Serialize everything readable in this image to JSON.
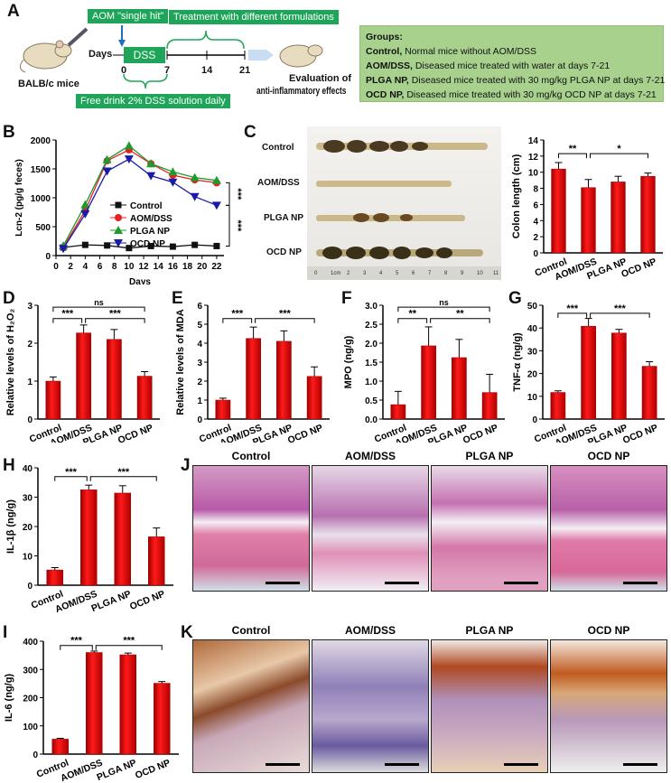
{
  "panel_labels": {
    "A": "A",
    "B": "B",
    "C": "C",
    "D": "D",
    "E": "E",
    "F": "F",
    "G": "G",
    "H": "H",
    "I": "I",
    "J": "J",
    "K": "K"
  },
  "colors": {
    "bar": "#e00000",
    "green_box": "#1fa55a",
    "groups_bg": "#a9d18e",
    "control": "#111111",
    "aom": "#e82020",
    "plga": "#1e9a2e",
    "ocd": "#1a1aa8"
  },
  "schematic": {
    "mouse_label": "BALB/c mice",
    "aom_box": "AOM \"single hit\"",
    "treatment_box": "Treatment with different formulations",
    "days_label": "Days",
    "dss_box": "DSS",
    "day_ticks": [
      "0",
      "7",
      "14",
      "21"
    ],
    "dss_box_bottom": "Free drink 2% DSS solution daily",
    "evaluation": [
      "Evaluation of",
      "anti-inflammatory effects"
    ]
  },
  "groups": {
    "title": "Groups:",
    "items": [
      {
        "name": "Control,",
        "desc": " Normal mice without AOM/DSS"
      },
      {
        "name": "AOM/DSS,",
        "desc": " Diseased mice treated with water at days 7-21"
      },
      {
        "name": "PLGA NP,",
        "desc": " Diseased mice treated with 30 mg/kg PLGA NP at days 7-21"
      },
      {
        "name": "OCD NP,",
        "desc": " Diseased mice treated with 30 mg/kg OCD NP at days 7-21"
      }
    ]
  },
  "colon_photo": {
    "rows": [
      "Control",
      "AOM/DSS",
      "PLGA NP",
      "OCD NP"
    ],
    "ruler": [
      "0",
      "1cm",
      "2",
      "3",
      "4",
      "5",
      "6",
      "7",
      "8",
      "9",
      "10",
      "11"
    ]
  },
  "histology": {
    "J": [
      "Control",
      "AOM/DSS",
      "PLGA NP",
      "OCD NP"
    ],
    "K": [
      "Control",
      "AOM/DSS",
      "PLGA NP",
      "OCD NP"
    ]
  },
  "chart_data": [
    {
      "id": "B",
      "type": "line",
      "xlabel": "Days",
      "ylabel": "Lcn-2 (pg/g feces)",
      "xlim": [
        0,
        23
      ],
      "ylim": [
        0,
        2000
      ],
      "xticks": [
        "0",
        "2",
        "4",
        "6",
        "8",
        "10",
        "12",
        "14",
        "16",
        "18",
        "20",
        "22"
      ],
      "yticks": [
        "0",
        "500",
        "1000",
        "1500",
        "2000"
      ],
      "x": [
        1,
        4,
        7,
        10,
        13,
        16,
        19,
        22
      ],
      "legend": "center",
      "series": [
        {
          "name": "Control",
          "marker": "square",
          "color": "#111111",
          "values": [
            140,
            185,
            175,
            130,
            165,
            155,
            185,
            165
          ]
        },
        {
          "name": "AOM/DSS",
          "marker": "circle",
          "color": "#e82020",
          "values": [
            140,
            780,
            1640,
            1830,
            1590,
            1390,
            1310,
            1260
          ]
        },
        {
          "name": "PLGA NP",
          "marker": "triangle-up",
          "color": "#1e9a2e",
          "values": [
            170,
            880,
            1660,
            1900,
            1590,
            1450,
            1350,
            1300
          ]
        },
        {
          "name": "OCD NP",
          "marker": "triangle-down",
          "color": "#1a1aa8",
          "values": [
            120,
            720,
            1460,
            1670,
            1380,
            1270,
            1020,
            870
          ]
        }
      ],
      "significance": [
        {
          "between": [
            "AOM/DSS",
            "OCD NP"
          ],
          "label": "***"
        },
        {
          "between": [
            "OCD NP",
            "Control"
          ],
          "label": "***"
        }
      ]
    },
    {
      "id": "C",
      "type": "bar",
      "ylabel": "Colon length (cm)",
      "ylim": [
        0,
        14
      ],
      "yticks": [
        "0",
        "2",
        "4",
        "6",
        "8",
        "10",
        "12",
        "14"
      ],
      "categories": [
        "Control",
        "AOM/DSS",
        "PLGA NP",
        "OCD NP"
      ],
      "values": [
        10.4,
        8.1,
        8.8,
        9.5
      ],
      "errors": [
        0.8,
        1.0,
        0.7,
        0.4
      ],
      "significance": [
        {
          "from": 0,
          "to": 1,
          "level": 12.3,
          "label": "**"
        },
        {
          "from": 1,
          "to": 3,
          "level": 12.3,
          "label": "*"
        }
      ]
    },
    {
      "id": "D",
      "type": "bar",
      "ylabel": "Relative levels of H₂O₂",
      "ylim": [
        0,
        3
      ],
      "yticks": [
        "0",
        "1",
        "2",
        "3"
      ],
      "categories": [
        "Control",
        "AOM/DSS",
        "PLGA NP",
        "OCD NP"
      ],
      "values": [
        1.0,
        2.27,
        2.1,
        1.13
      ],
      "errors": [
        0.11,
        0.21,
        0.26,
        0.12
      ],
      "significance": [
        {
          "from": 0,
          "to": 3,
          "level": 2.95,
          "label": "ns"
        },
        {
          "from": 0,
          "to": 1,
          "level": 2.65,
          "label": "***"
        },
        {
          "from": 1,
          "to": 3,
          "level": 2.65,
          "label": "***"
        }
      ]
    },
    {
      "id": "E",
      "type": "bar",
      "ylabel": "Relative levels of MDA",
      "ylim": [
        0,
        6
      ],
      "yticks": [
        "0",
        "1",
        "2",
        "3",
        "4",
        "5",
        "6"
      ],
      "categories": [
        "Control",
        "AOM/DSS",
        "PLGA NP",
        "OCD NP"
      ],
      "values": [
        1.0,
        4.25,
        4.1,
        2.25
      ],
      "errors": [
        0.1,
        0.6,
        0.55,
        0.5
      ],
      "significance": [
        {
          "from": 0,
          "to": 1,
          "level": 5.3,
          "label": "***"
        },
        {
          "from": 1,
          "to": 3,
          "level": 5.3,
          "label": "***"
        }
      ]
    },
    {
      "id": "F",
      "type": "bar",
      "ylabel": "MPO (ng/g)",
      "ylim": [
        0,
        3
      ],
      "yticks": [
        "0.0",
        "0.5",
        "1.0",
        "1.5",
        "2.0",
        "2.5",
        "3.0"
      ],
      "categories": [
        "Control",
        "AOM/DSS",
        "PLGA NP",
        "OCD NP"
      ],
      "values": [
        0.38,
        1.93,
        1.62,
        0.7
      ],
      "errors": [
        0.35,
        0.5,
        0.48,
        0.48
      ],
      "significance": [
        {
          "from": 0,
          "to": 3,
          "level": 2.95,
          "label": "ns"
        },
        {
          "from": 0,
          "to": 1,
          "level": 2.65,
          "label": "**"
        },
        {
          "from": 1,
          "to": 3,
          "level": 2.65,
          "label": "**"
        }
      ]
    },
    {
      "id": "G",
      "type": "bar",
      "ylabel": "TNF-α (ng/g)",
      "ylim": [
        0,
        50
      ],
      "yticks": [
        "0",
        "10",
        "20",
        "30",
        "40",
        "50"
      ],
      "categories": [
        "Control",
        "AOM/DSS",
        "PLGA NP",
        "OCD NP"
      ],
      "values": [
        11.7,
        40.8,
        37.8,
        23.2
      ],
      "errors": [
        0.7,
        3.4,
        1.6,
        2.0
      ],
      "significance": [
        {
          "from": 0,
          "to": 1,
          "level": 46.5,
          "label": "***"
        },
        {
          "from": 1,
          "to": 3,
          "level": 46.5,
          "label": "***"
        }
      ]
    },
    {
      "id": "H",
      "type": "bar",
      "ylabel": "IL-1β (ng/g)",
      "ylim": [
        0,
        40
      ],
      "yticks": [
        "0",
        "10",
        "20",
        "30",
        "40"
      ],
      "categories": [
        "Control",
        "AOM/DSS",
        "PLGA NP",
        "OCD NP"
      ],
      "values": [
        5.2,
        32.5,
        31.4,
        16.5
      ],
      "errors": [
        0.8,
        1.6,
        2.5,
        3.0
      ],
      "significance": [
        {
          "from": 0,
          "to": 1,
          "level": 37,
          "label": "***"
        },
        {
          "from": 1,
          "to": 3,
          "level": 37,
          "label": "***"
        }
      ]
    },
    {
      "id": "I",
      "type": "bar",
      "ylabel": "IL-6 (ng/g)",
      "ylim": [
        0,
        400
      ],
      "yticks": [
        "0",
        "100",
        "200",
        "300",
        "400"
      ],
      "categories": [
        "Control",
        "AOM/DSS",
        "PLGA NP",
        "OCD NP"
      ],
      "values": [
        53,
        360,
        352,
        251
      ],
      "errors": [
        3,
        5,
        6,
        6
      ],
      "significance": [
        {
          "from": 0,
          "to": 1,
          "level": 385,
          "label": "***"
        },
        {
          "from": 1,
          "to": 3,
          "level": 385,
          "label": "***"
        }
      ]
    }
  ]
}
